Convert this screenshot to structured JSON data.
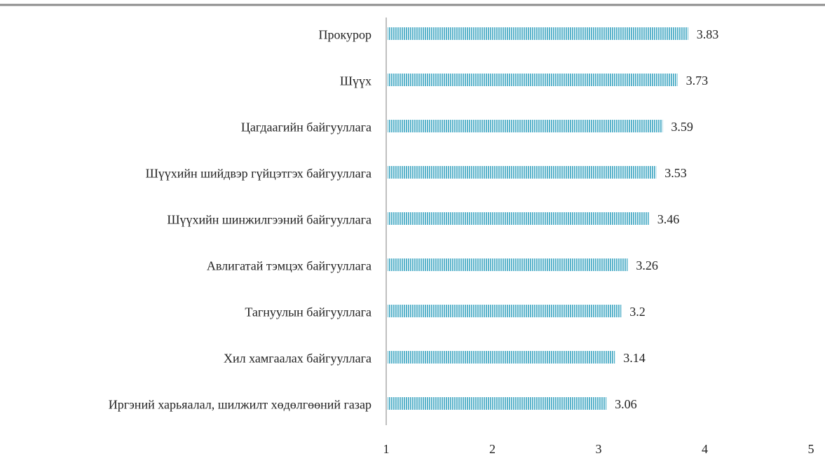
{
  "chart_data": {
    "type": "barh",
    "categories": [
      "Прокурор",
      "Шүүх",
      "Цагдаагийн байгууллага",
      "Шүүхийн шийдвэр гүйцэтгэх байгууллага",
      "Шүүхийн шинжилгээний байгууллага",
      "Авлигатай тэмцэх байгууллага",
      "Тагнуулын байгууллага",
      "Хил хамгаалах байгууллага",
      "Иргэний харьяалал, шилжилт хөдөлгөөний газар"
    ],
    "values": [
      3.83,
      3.73,
      3.59,
      3.53,
      3.46,
      3.26,
      3.2,
      3.14,
      3.06
    ],
    "color": "#4bacc6",
    "xlim": [
      1,
      5
    ],
    "xticks": [
      1,
      2,
      3,
      4,
      5
    ],
    "grid": false
  }
}
